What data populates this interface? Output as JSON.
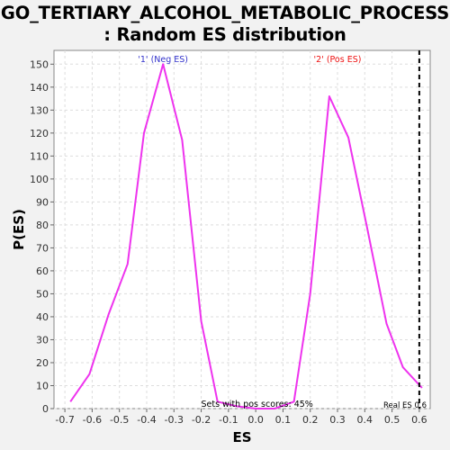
{
  "chart_data": {
    "type": "line",
    "title_lines": [
      "GO_TERTIARY_ALCOHOL_METABOLIC_PROCESS",
      ": Random ES distribution"
    ],
    "xlabel": "ES",
    "ylabel": "P(ES)",
    "xlim": [
      -0.74,
      0.64
    ],
    "ylim": [
      0,
      156
    ],
    "x_ticks": [
      "-0.7",
      "-0.6",
      "-0.5",
      "-0.4",
      "-0.3",
      "-0.2",
      "-0.1",
      "0.0",
      "0.1",
      "0.2",
      "0.3",
      "0.4",
      "0.5",
      "0.6"
    ],
    "y_ticks": [
      "0",
      "10",
      "20",
      "30",
      "40",
      "50",
      "60",
      "70",
      "80",
      "90",
      "100",
      "110",
      "120",
      "130",
      "140",
      "150"
    ],
    "grid": true,
    "series": [
      {
        "color": "#ee33ee",
        "x": [
          -0.68,
          -0.61,
          -0.54,
          -0.47,
          -0.41,
          -0.34,
          -0.27,
          -0.2,
          -0.14,
          -0.07,
          0.0,
          0.07,
          0.14,
          0.2,
          0.27,
          0.34,
          0.41,
          0.48,
          0.54,
          0.61
        ],
        "y": [
          3,
          15,
          41,
          63,
          120,
          150,
          117,
          38,
          3,
          1,
          0,
          0,
          3,
          50,
          136,
          118,
          78,
          37,
          18,
          9
        ]
      }
    ],
    "annotations": {
      "neg_label": "'1' (Neg ES)",
      "neg_color": "#3333cc",
      "pos_label": "'2' (Pos ES)",
      "pos_color": "#ee1111",
      "sets_text": "Sets with pos scores: 45%",
      "real_es_text": "Real ES 0.6",
      "real_es_value": 0.6
    }
  }
}
